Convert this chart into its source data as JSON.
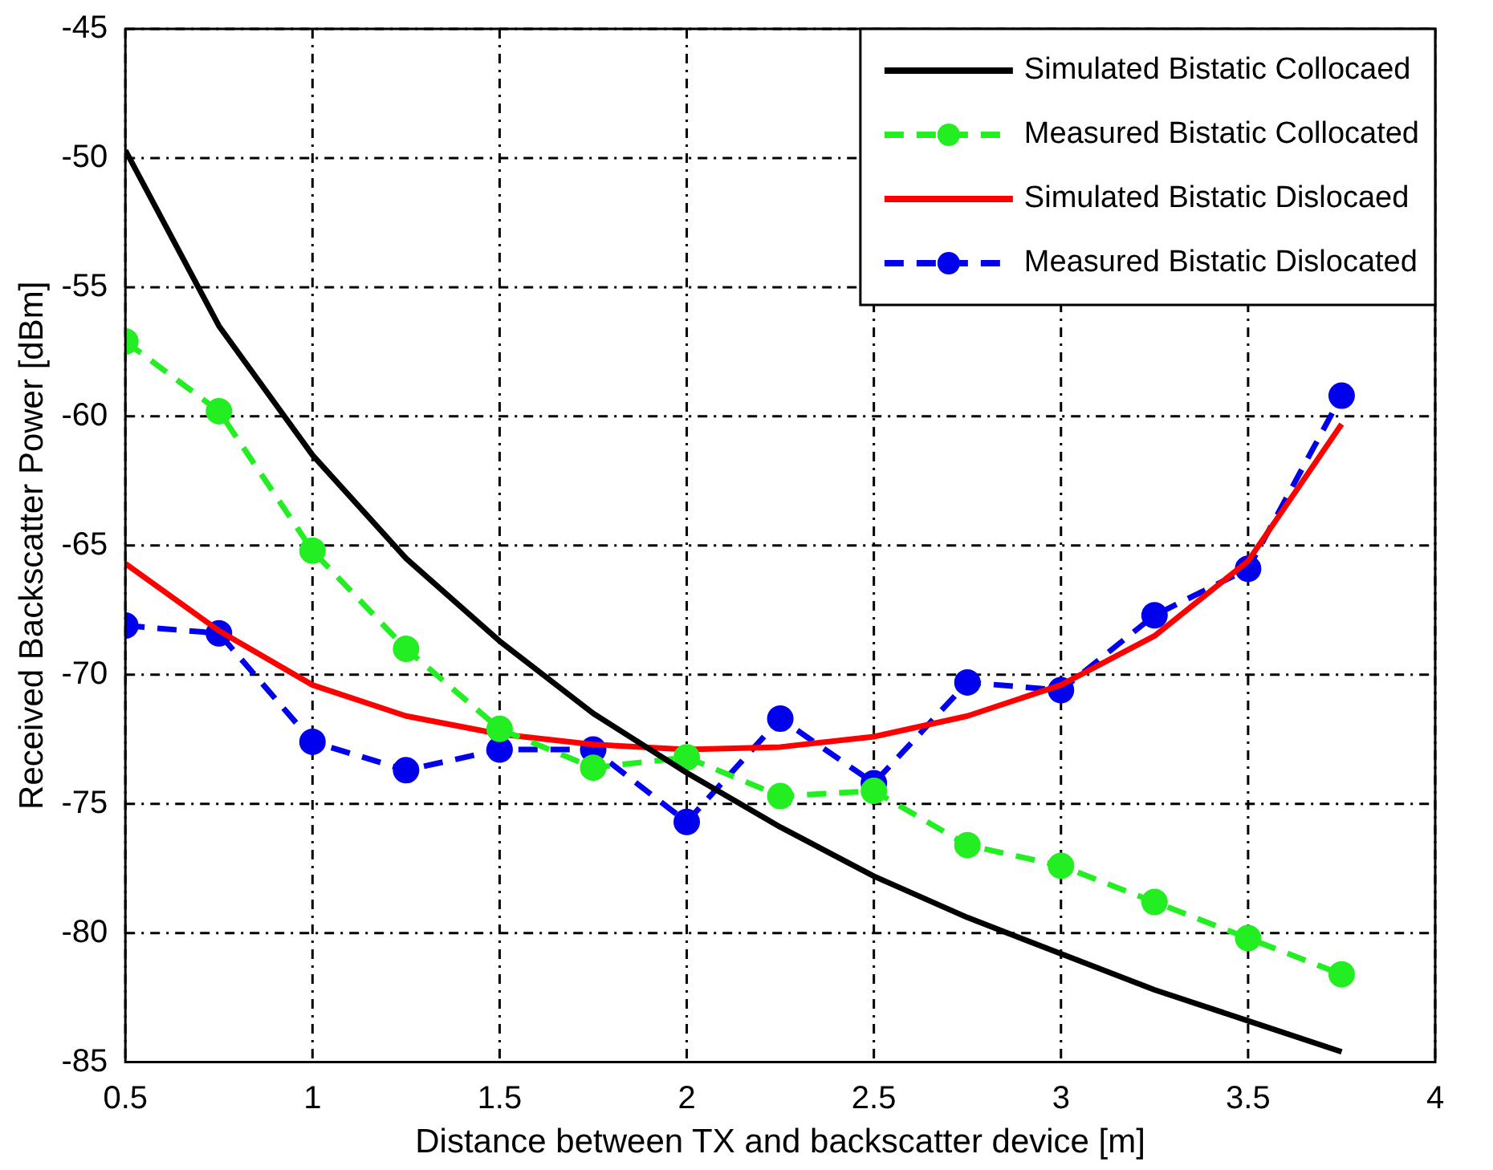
{
  "chart_data": {
    "type": "line",
    "xlabel": "Distance between TX and backscatter device [m]",
    "ylabel": "Received Backscatter Power [dBm]",
    "x": [
      0.5,
      0.75,
      1,
      1.25,
      1.5,
      1.75,
      2,
      2.25,
      2.5,
      2.75,
      3,
      3.25,
      3.5,
      3.75
    ],
    "xlim": [
      0.5,
      4
    ],
    "xticks": [
      0.5,
      1,
      1.5,
      2,
      2.5,
      3,
      3.5,
      4
    ],
    "ylim": [
      -85,
      -45
    ],
    "yticks": [
      -85,
      -80,
      -75,
      -70,
      -65,
      -60,
      -55,
      -50,
      -45
    ],
    "grid": true,
    "legend": "top right",
    "series": [
      {
        "name": "Simulated Bistatic Collocaed",
        "color": "#000000",
        "marker": "none",
        "line_style": "solid",
        "values": [
          -49.7,
          -56.5,
          -61.5,
          -65.5,
          -68.7,
          -71.5,
          -73.8,
          -75.9,
          -77.8,
          -79.4,
          -80.8,
          -82.2,
          -83.4,
          -84.6
        ]
      },
      {
        "name": "Measured Bistatic Collocated",
        "color": "#22ee22",
        "marker": "circle",
        "line_style": "dashed",
        "values": [
          -57.1,
          -59.8,
          -65.2,
          -69.0,
          -72.1,
          -73.6,
          -73.2,
          -74.7,
          -74.5,
          -76.6,
          -77.4,
          -78.8,
          -80.2,
          -81.6
        ]
      },
      {
        "name": "Simulated Bistatic Dislocaed",
        "color": "#ff0000",
        "marker": "none",
        "line_style": "solid",
        "values": [
          -65.7,
          -68.3,
          -70.4,
          -71.6,
          -72.3,
          -72.7,
          -72.9,
          -72.8,
          -72.4,
          -71.6,
          -70.4,
          -68.5,
          -65.6,
          -60.3
        ]
      },
      {
        "name": "Measured Bistatic Dislocated",
        "color": "#0000ee",
        "marker": "circle",
        "line_style": "dashed",
        "values": [
          -68.1,
          -68.4,
          -72.6,
          -73.7,
          -72.9,
          -72.9,
          -75.7,
          -71.7,
          -74.2,
          -70.3,
          -70.6,
          -67.7,
          -65.9,
          -59.2
        ]
      }
    ]
  }
}
